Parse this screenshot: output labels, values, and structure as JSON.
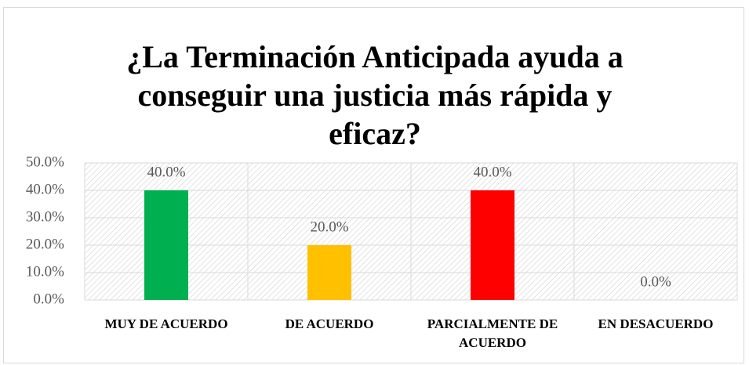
{
  "chart_data": {
    "type": "bar",
    "title": "¿La Terminación Anticipada ayuda a conseguir una justicia más rápida y eficaz?",
    "categories": [
      "MUY DE ACUERDO",
      "DE ACUERDO",
      "PARCIALMENTE DE ACUERDO",
      "EN DESACUERDO"
    ],
    "values": [
      40,
      20,
      40,
      0
    ],
    "value_labels": [
      "40.0%",
      "20.0%",
      "40.0%",
      "0.0%"
    ],
    "colors": [
      "#00b050",
      "#ffc000",
      "#ff0000",
      "#0070c0"
    ],
    "ylim": [
      0,
      50
    ],
    "yticks": [
      {
        "value": 0,
        "label": "0.0%"
      },
      {
        "value": 10,
        "label": "10.0%"
      },
      {
        "value": 20,
        "label": "20.0%"
      },
      {
        "value": 30,
        "label": "30.0%"
      },
      {
        "value": 40,
        "label": "40.0%"
      },
      {
        "value": 50,
        "label": "50.0%"
      }
    ],
    "grid": true
  }
}
